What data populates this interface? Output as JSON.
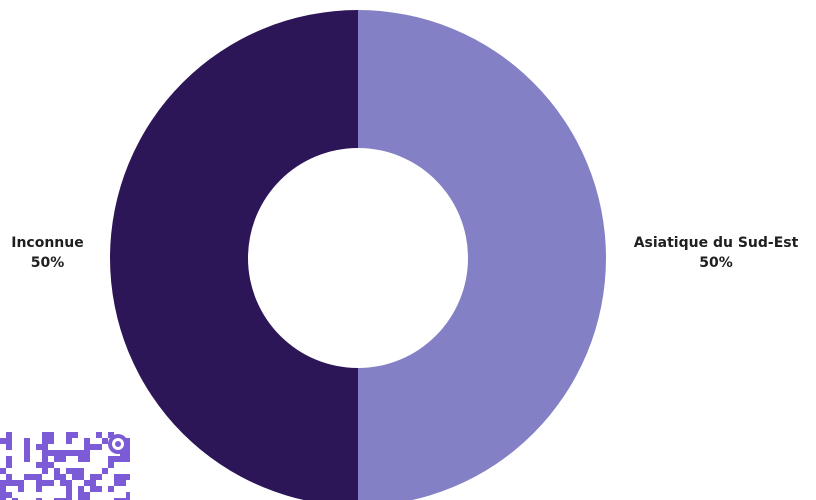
{
  "chart_data": {
    "type": "pie",
    "variant": "donut",
    "categories": [
      "Asiatique du Sud-Est",
      "Inconnue"
    ],
    "values": [
      50,
      50
    ],
    "value_labels": [
      "50%",
      "50%"
    ],
    "colors": [
      "#8480c5",
      "#2d1658"
    ],
    "title": "",
    "legend": "none"
  },
  "qr_icon": "qr-code-icon",
  "qr_color": "#7b5cd6"
}
